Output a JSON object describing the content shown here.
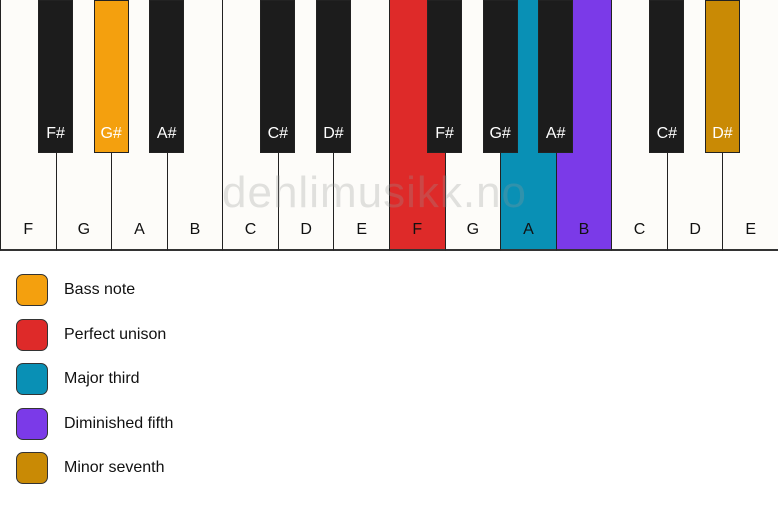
{
  "piano": {
    "white_keys": [
      {
        "label": "F",
        "color": null
      },
      {
        "label": "G",
        "color": null
      },
      {
        "label": "A",
        "color": null
      },
      {
        "label": "B",
        "color": null
      },
      {
        "label": "C",
        "color": null
      },
      {
        "label": "D",
        "color": null
      },
      {
        "label": "E",
        "color": null
      },
      {
        "label": "F",
        "color": "#de2a29"
      },
      {
        "label": "G",
        "color": null
      },
      {
        "label": "A",
        "color": "#0990b5"
      },
      {
        "label": "B",
        "color": "#7b3ae8"
      },
      {
        "label": "C",
        "color": null
      },
      {
        "label": "D",
        "color": null
      },
      {
        "label": "E",
        "color": null
      }
    ],
    "black_keys": [
      {
        "label": "F#",
        "after": 0,
        "color": null
      },
      {
        "label": "G#",
        "after": 1,
        "color": "#f4a00e"
      },
      {
        "label": "A#",
        "after": 2,
        "color": null
      },
      {
        "label": "C#",
        "after": 4,
        "color": null
      },
      {
        "label": "D#",
        "after": 5,
        "color": null
      },
      {
        "label": "F#",
        "after": 7,
        "color": null
      },
      {
        "label": "G#",
        "after": 8,
        "color": null
      },
      {
        "label": "A#",
        "after": 9,
        "color": null
      },
      {
        "label": "C#",
        "after": 11,
        "color": null
      },
      {
        "label": "D#",
        "after": 12,
        "color": "#c98a05"
      }
    ]
  },
  "watermark": "dehlimusikk.no",
  "legend": [
    {
      "label": "Bass note",
      "color": "#f4a00e"
    },
    {
      "label": "Perfect unison",
      "color": "#de2a29"
    },
    {
      "label": "Major third",
      "color": "#0990b5"
    },
    {
      "label": "Diminished fifth",
      "color": "#7b3ae8"
    },
    {
      "label": "Minor seventh",
      "color": "#c98a05"
    }
  ]
}
